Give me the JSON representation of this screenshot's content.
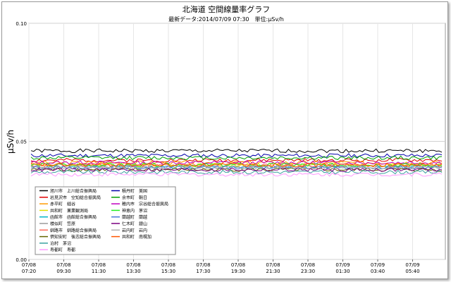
{
  "chart_data": {
    "type": "line",
    "title": "北海道 空間線量率グラフ",
    "subtitle": "最新データ:2014/07/09 07:30　単位:μSv/h",
    "ylabel": "μSv/h",
    "ylim": [
      0,
      0.1
    ],
    "yticks": [
      "0.00",
      "0.05",
      "0.10"
    ],
    "yticks_values": [
      0,
      0.05,
      0.1
    ],
    "x_ticks": [
      {
        "date": "07/08",
        "time": "07:20"
      },
      {
        "date": "07/08",
        "time": "09:30"
      },
      {
        "date": "07/08",
        "time": "11:30"
      },
      {
        "date": "07/08",
        "time": "13:30"
      },
      {
        "date": "07/08",
        "time": "15:30"
      },
      {
        "date": "07/08",
        "time": "17:30"
      },
      {
        "date": "07/08",
        "time": "19:30"
      },
      {
        "date": "07/08",
        "time": "21:30"
      },
      {
        "date": "07/08",
        "time": "23:30"
      },
      {
        "date": "07/09",
        "time": "01:30"
      },
      {
        "date": "07/09",
        "time": "03:40"
      },
      {
        "date": "07/09",
        "time": "05:40"
      }
    ],
    "grid": true,
    "legend_position": "lower-left",
    "series": [
      {
        "name": "旭川市　上川総合振興局",
        "color": "#000000",
        "level": 0.046
      },
      {
        "name": "岩見沢市　空知総合振興局",
        "color": "#e00000",
        "level": 0.042
      },
      {
        "name": "赤平町　縫谷",
        "color": "#ff9a00",
        "level": 0.041
      },
      {
        "name": "共和町　薬業観測局",
        "color": "#e0e000",
        "level": 0.04
      },
      {
        "name": "函館市　函館総合振興局",
        "color": "#00b7c8",
        "level": 0.039
      },
      {
        "name": "様似町　笠原",
        "color": "#9a9a9a",
        "level": 0.039
      },
      {
        "name": "釧路市　釧路総合振興局",
        "color": "#ff6a5a",
        "level": 0.04
      },
      {
        "name": "倶知安町　後志総合振興局",
        "color": "#666600",
        "level": 0.038
      },
      {
        "name": "泊村　茅沼",
        "color": "#3aa0a0",
        "level": 0.037
      },
      {
        "name": "寿都町　寿都",
        "color": "#ff99ff",
        "level": 0.036
      },
      {
        "name": "積丹町　美国",
        "color": "#0000aa",
        "level": 0.044
      },
      {
        "name": "余市町　朝日",
        "color": "#00a000",
        "level": 0.043
      },
      {
        "name": "稚内市　宗谷総合振興局",
        "color": "#c000c0",
        "level": 0.041
      },
      {
        "name": "神恵内　茅沼",
        "color": "#22ee22",
        "level": 0.04
      },
      {
        "name": "蘭越町　蘭越",
        "color": "#4a78d8",
        "level": 0.039
      },
      {
        "name": "仁木町　銀山",
        "color": "#7a0080",
        "level": 0.038
      },
      {
        "name": "岩内町　岩内",
        "color": "#b0b0b0",
        "level": 0.039
      },
      {
        "name": "共和町　南幌加",
        "color": "#ff5500",
        "level": 0.04
      }
    ]
  }
}
